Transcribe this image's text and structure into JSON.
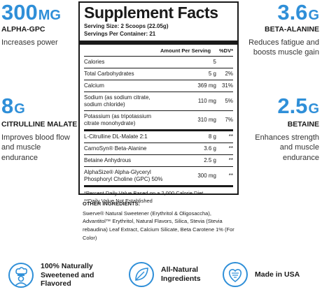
{
  "left_stats": [
    {
      "num": "300",
      "unit": "MG",
      "name": "ALPHA-GPC",
      "desc": "Increases power"
    },
    {
      "num": "8",
      "unit": "G",
      "name": "CITRULLINE MALATE",
      "desc": "Improves blood flow and muscle endurance"
    }
  ],
  "right_stats": [
    {
      "num": "3.6",
      "unit": "G",
      "name": "BETA-ALANINE",
      "desc": "Reduces fatigue and boosts muscle gain"
    },
    {
      "num": "2.5",
      "unit": "G",
      "name": "BETAINE",
      "desc": "Enhances strength and muscle endurance"
    }
  ],
  "facts": {
    "title": "Supplement Facts",
    "serving_size": "Serving Size: 2 Scoops (22.05g)",
    "servings": "Servings Per Container: 21",
    "amount_header": "Amount Per Serving",
    "dv_header": "%DV*",
    "rows": [
      {
        "name": "Calories",
        "amount": "5",
        "dv": ""
      },
      {
        "name": "Total Carbohydrates",
        "amount": "5 g",
        "dv": "2%"
      },
      {
        "name": "Calcium",
        "amount": "369 mg",
        "dv": "31%"
      },
      {
        "name": "Sodium (as sodium citrate, sodium chloride)",
        "amount": "110 mg",
        "dv": "5%"
      },
      {
        "name": "Potassium (as tripotassium citrate monohydrate)",
        "amount": "310 mg",
        "dv": "7%"
      },
      {
        "name": "L-Citrulline DL-Malate 2:1",
        "amount": "8 g",
        "dv": "**"
      },
      {
        "name": "CarnoSyn® Beta-Alanine",
        "amount": "3.6 g",
        "dv": "**"
      },
      {
        "name": "Betaine Anhydrous",
        "amount": "2.5 g",
        "dv": "**"
      },
      {
        "name": "AlphaSize® Alpha-Glyceryl Phosphoryl Choline (GPC) 50%",
        "amount": "300 mg",
        "dv": "**"
      }
    ],
    "footnote1": "*Percent Daily Value Based on a 2,000 Calorie Diet",
    "footnote2": "**Daily Value Not Established"
  },
  "other": {
    "heading": "OTHER INGREDIENTS:",
    "text": "Swerve® Natural Sweetener (Erythritol & Oligosaccha), Advantitol™ Erythritol, Natural Flavors, Silica, Stevia (Stevia rebaudina) Leaf Extract, Calcium Silicate, Beta Carotene 1% (For Color)"
  },
  "badges": [
    {
      "icon": "chef-icon",
      "line1": "100% Naturally",
      "line2": "Sweetened and",
      "line3": "Flavored"
    },
    {
      "icon": "leaf-icon",
      "line1": "All-Natural",
      "line2": "Ingredients",
      "line3": ""
    },
    {
      "icon": "usa-flag-icon",
      "line1": "Made in USA",
      "line2": "",
      "line3": ""
    }
  ],
  "colors": {
    "accent": "#2f8fd8",
    "text": "#1a1a1a"
  }
}
